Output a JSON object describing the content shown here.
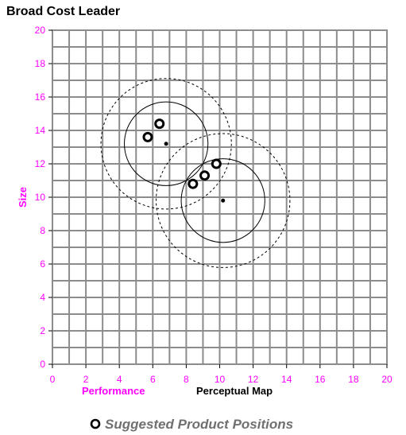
{
  "chart_data": {
    "type": "scatter",
    "title": "Broad Cost Leader",
    "xlabel": "Performance",
    "xlabel_secondary": "Perceptual Map",
    "ylabel": "Size",
    "xlim": [
      0,
      20
    ],
    "ylim": [
      0,
      20
    ],
    "xticks": [
      0,
      2,
      4,
      6,
      8,
      10,
      12,
      14,
      16,
      18,
      20
    ],
    "yticks": [
      0,
      2,
      4,
      6,
      8,
      10,
      12,
      14,
      16,
      18,
      20
    ],
    "minor_grid_step": 1,
    "grid": true,
    "legend": {
      "label": "Suggested Product Positions",
      "placement": "bottom-center"
    },
    "segments": [
      {
        "center": {
          "x": 6.8,
          "y": 13.2
        },
        "inner_radius": 2.5,
        "outer_radius": 3.9,
        "points": [
          {
            "x": 5.7,
            "y": 13.6
          },
          {
            "x": 6.4,
            "y": 14.4
          }
        ]
      },
      {
        "center": {
          "x": 10.2,
          "y": 9.8
        },
        "inner_radius": 2.5,
        "outer_radius": 4.0,
        "points": [
          {
            "x": 8.4,
            "y": 10.8
          },
          {
            "x": 9.1,
            "y": 11.3
          },
          {
            "x": 9.8,
            "y": 12.0
          }
        ]
      }
    ],
    "colors": {
      "grid": "#8c8c8c",
      "ticks": "#ff00ff",
      "ylabel": "#ff00ff",
      "xlabel": "#ff00ff",
      "xlabel_secondary": "#000000",
      "legend_text": "#707070"
    }
  }
}
